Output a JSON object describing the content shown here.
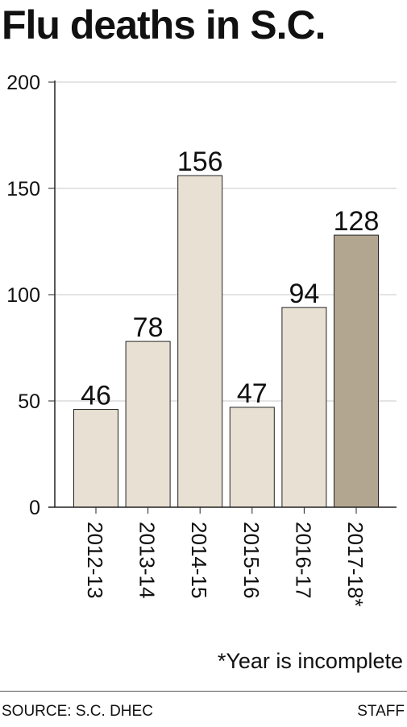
{
  "title": "Flu deaths in S.C.",
  "footnote": "*Year is incomplete",
  "source": "SOURCE: S.C. DHEC",
  "credit": "STAFF",
  "chart_data": {
    "type": "bar",
    "title": "Flu deaths in S.C.",
    "xlabel": "",
    "ylabel": "",
    "categories": [
      "2012-13",
      "2013-14",
      "2014-15",
      "2015-16",
      "2016-17",
      "2017-18*"
    ],
    "values": [
      46,
      78,
      156,
      47,
      94,
      128
    ],
    "ylim": [
      0,
      200
    ],
    "yticks": [
      0,
      50,
      100,
      150,
      200
    ],
    "grid": true,
    "colors": {
      "bar": "#e8e0d3",
      "bar_highlight": "#b3a690",
      "bar_stroke": "#222222",
      "grid": "#c8c8c8"
    },
    "highlight_category": "2017-18*"
  }
}
